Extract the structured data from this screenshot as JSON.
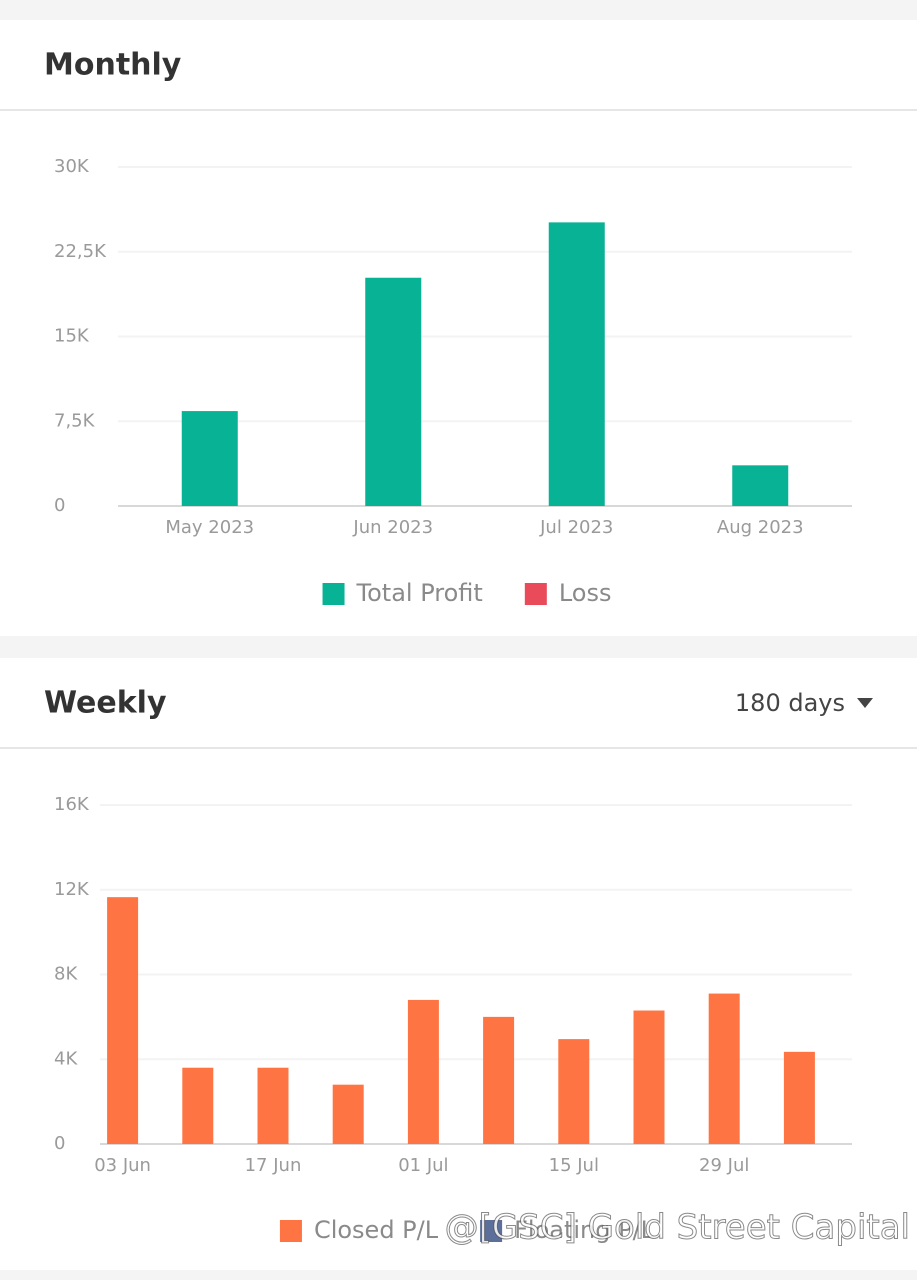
{
  "chart_data": [
    {
      "type": "bar",
      "title": "Monthly",
      "categories": [
        "May 2023",
        "Jun 2023",
        "Jul 2023",
        "Aug 2023"
      ],
      "series": [
        {
          "name": "Total Profit",
          "color": "#08b294",
          "values": [
            8400,
            20200,
            25100,
            3600
          ]
        },
        {
          "name": "Loss",
          "color": "#e94b5b",
          "values": [
            null,
            null,
            null,
            null
          ]
        }
      ],
      "ylim": [
        0,
        30000
      ],
      "yticks": [
        0,
        {
          "value": 7500,
          "label": "7,5K"
        },
        {
          "value": 15000,
          "label": "15K"
        },
        {
          "value": 22500,
          "label": "22,5K"
        },
        {
          "value": 30000,
          "label": "30K"
        }
      ],
      "grid": true
    },
    {
      "type": "bar",
      "title": "Weekly",
      "selector": "180 days",
      "categories": [
        "03 Jun",
        null,
        "17 Jun",
        null,
        "01 Jul",
        null,
        "15 Jul",
        null,
        "29 Jul",
        null
      ],
      "series": [
        {
          "name": "Closed P/L",
          "color": "#ff7443",
          "values": [
            11650,
            3600,
            3600,
            2800,
            6800,
            6000,
            4950,
            6300,
            7100,
            4350
          ]
        },
        {
          "name": "Floating P/L",
          "color": "#5b6f9a",
          "values": [
            null,
            null,
            null,
            null,
            null,
            null,
            null,
            null,
            null,
            null
          ]
        }
      ],
      "ylim": [
        0,
        16000
      ],
      "yticks": [
        0,
        {
          "value": 4000,
          "label": "4K"
        },
        {
          "value": 8000,
          "label": "8K"
        },
        {
          "value": 12000,
          "label": "12K"
        },
        {
          "value": 16000,
          "label": "16K"
        }
      ],
      "grid": true
    }
  ],
  "watermark": "@[GSC] Gold Street Capital"
}
